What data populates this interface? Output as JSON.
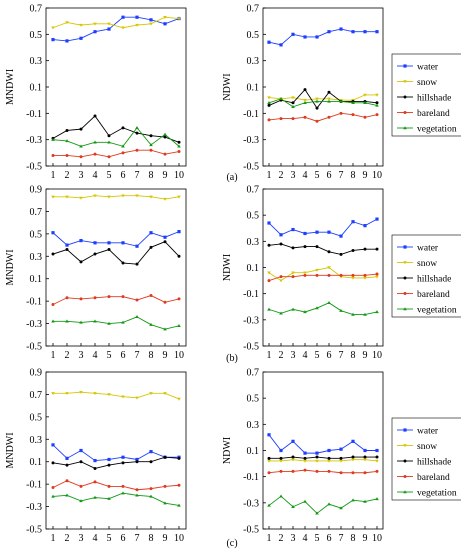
{
  "colors": {
    "water": "#1f3fff",
    "snow": "#d6c600",
    "hillshade": "#000000",
    "bareland": "#e03a1e",
    "vegetation": "#119911"
  },
  "chart_data": [
    {
      "panel": "(a)",
      "side": "left",
      "type": "line",
      "ylabel": "MNDWI",
      "ylim": [
        -0.5,
        0.7
      ],
      "yticks": [
        "0.7",
        "0.5",
        "0.3",
        "0.1",
        "-0.1",
        "-0.3",
        "-0.5"
      ],
      "x": [
        1,
        2,
        3,
        4,
        5,
        6,
        7,
        8,
        9,
        10
      ],
      "legend": "none",
      "series": [
        {
          "name": "water",
          "values": [
            0.46,
            0.45,
            0.47,
            0.52,
            0.54,
            0.63,
            0.63,
            0.61,
            0.58,
            0.62
          ]
        },
        {
          "name": "snow",
          "values": [
            0.55,
            0.59,
            0.57,
            0.58,
            0.58,
            0.55,
            0.57,
            0.58,
            0.63,
            0.62
          ]
        },
        {
          "name": "hillshade",
          "values": [
            -0.29,
            -0.23,
            -0.22,
            -0.12,
            -0.27,
            -0.21,
            -0.25,
            -0.27,
            -0.28,
            -0.32
          ]
        },
        {
          "name": "bareland",
          "values": [
            -0.42,
            -0.42,
            -0.43,
            -0.41,
            -0.43,
            -0.4,
            -0.38,
            -0.38,
            -0.41,
            -0.39
          ]
        },
        {
          "name": "vegetation",
          "values": [
            -0.3,
            -0.31,
            -0.35,
            -0.32,
            -0.32,
            -0.35,
            -0.21,
            -0.34,
            -0.26,
            -0.35
          ]
        }
      ]
    },
    {
      "panel": "(a)",
      "side": "right",
      "type": "line",
      "ylabel": "NDWI",
      "ylim": [
        -0.5,
        0.7
      ],
      "yticks": [
        "0.7",
        "0.5",
        "0.3",
        "0.1",
        "-0.1",
        "-0.3",
        "-0.5"
      ],
      "x": [
        1,
        2,
        3,
        4,
        5,
        6,
        7,
        8,
        9,
        10
      ],
      "legend": "right",
      "series": [
        {
          "name": "water",
          "values": [
            0.44,
            0.42,
            0.5,
            0.48,
            0.48,
            0.52,
            0.54,
            0.52,
            0.52,
            0.52
          ]
        },
        {
          "name": "snow",
          "values": [
            0.02,
            0.01,
            0.02,
            0.0,
            0.01,
            0.01,
            0.0,
            0.0,
            0.04,
            0.04
          ]
        },
        {
          "name": "hillshade",
          "values": [
            -0.04,
            0.0,
            -0.02,
            0.08,
            -0.06,
            0.06,
            -0.01,
            -0.01,
            -0.01,
            -0.02
          ]
        },
        {
          "name": "bareland",
          "values": [
            -0.15,
            -0.14,
            -0.14,
            -0.13,
            -0.16,
            -0.13,
            -0.1,
            -0.11,
            -0.13,
            -0.11
          ]
        },
        {
          "name": "vegetation",
          "values": [
            -0.02,
            0.01,
            -0.05,
            -0.02,
            -0.01,
            -0.01,
            -0.01,
            -0.02,
            -0.02,
            -0.04
          ]
        }
      ]
    },
    {
      "panel": "(b)",
      "side": "left",
      "type": "line",
      "ylabel": "MNDWI",
      "ylim": [
        -0.5,
        0.9
      ],
      "yticks": [
        "0.9",
        "0.7",
        "0.5",
        "0.3",
        "0.1",
        "-0.1",
        "-0.3",
        "-0.5"
      ],
      "x": [
        1,
        2,
        3,
        4,
        5,
        6,
        7,
        8,
        9,
        10
      ],
      "legend": "none",
      "series": [
        {
          "name": "water",
          "values": [
            0.51,
            0.4,
            0.44,
            0.42,
            0.42,
            0.42,
            0.39,
            0.51,
            0.47,
            0.52
          ]
        },
        {
          "name": "snow",
          "values": [
            0.83,
            0.83,
            0.82,
            0.84,
            0.83,
            0.84,
            0.84,
            0.83,
            0.81,
            0.83
          ]
        },
        {
          "name": "hillshade",
          "values": [
            0.32,
            0.36,
            0.25,
            0.32,
            0.36,
            0.24,
            0.23,
            0.38,
            0.43,
            0.3
          ]
        },
        {
          "name": "bareland",
          "values": [
            -0.13,
            -0.07,
            -0.08,
            -0.07,
            -0.06,
            -0.06,
            -0.09,
            -0.05,
            -0.11,
            -0.08
          ]
        },
        {
          "name": "vegetation",
          "values": [
            -0.28,
            -0.28,
            -0.29,
            -0.28,
            -0.3,
            -0.29,
            -0.24,
            -0.31,
            -0.35,
            -0.32
          ]
        }
      ]
    },
    {
      "panel": "(b)",
      "side": "right",
      "type": "line",
      "ylabel": "NDWI",
      "ylim": [
        -0.5,
        0.7
      ],
      "yticks": [
        "0.7",
        "0.5",
        "0.3",
        "0.1",
        "-0.1",
        "-0.3",
        "-0.5"
      ],
      "x": [
        1,
        2,
        3,
        4,
        5,
        6,
        7,
        8,
        9,
        10
      ],
      "legend": "right",
      "series": [
        {
          "name": "water",
          "values": [
            0.44,
            0.35,
            0.39,
            0.36,
            0.37,
            0.37,
            0.34,
            0.45,
            0.42,
            0.47
          ]
        },
        {
          "name": "snow",
          "values": [
            0.06,
            0.0,
            0.06,
            0.06,
            0.08,
            0.1,
            0.03,
            0.02,
            0.02,
            0.03
          ]
        },
        {
          "name": "hillshade",
          "values": [
            0.27,
            0.28,
            0.25,
            0.26,
            0.26,
            0.22,
            0.2,
            0.23,
            0.24,
            0.24
          ]
        },
        {
          "name": "bareland",
          "values": [
            0.0,
            0.03,
            0.03,
            0.04,
            0.04,
            0.04,
            0.04,
            0.04,
            0.04,
            0.05
          ]
        },
        {
          "name": "vegetation",
          "values": [
            -0.22,
            -0.25,
            -0.22,
            -0.24,
            -0.21,
            -0.17,
            -0.23,
            -0.26,
            -0.26,
            -0.24
          ]
        }
      ]
    },
    {
      "panel": "(c)",
      "side": "left",
      "type": "line",
      "ylabel": "MNDWI",
      "ylim": [
        -0.5,
        0.9
      ],
      "yticks": [
        "0.9",
        "0.7",
        "0.5",
        "0.3",
        "0.1",
        "-0.1",
        "-0.3",
        "-0.5"
      ],
      "x": [
        1,
        2,
        3,
        4,
        5,
        6,
        7,
        8,
        9,
        10
      ],
      "legend": "none",
      "series": [
        {
          "name": "water",
          "values": [
            0.25,
            0.13,
            0.2,
            0.11,
            0.12,
            0.14,
            0.12,
            0.19,
            0.14,
            0.14
          ]
        },
        {
          "name": "snow",
          "values": [
            0.71,
            0.71,
            0.72,
            0.71,
            0.7,
            0.68,
            0.67,
            0.71,
            0.71,
            0.66
          ]
        },
        {
          "name": "hillshade",
          "values": [
            0.09,
            0.07,
            0.1,
            0.04,
            0.07,
            0.09,
            0.1,
            0.1,
            0.14,
            0.13
          ]
        },
        {
          "name": "bareland",
          "values": [
            -0.13,
            -0.07,
            -0.12,
            -0.08,
            -0.12,
            -0.12,
            -0.15,
            -0.14,
            -0.12,
            -0.11
          ]
        },
        {
          "name": "vegetation",
          "values": [
            -0.21,
            -0.2,
            -0.25,
            -0.22,
            -0.23,
            -0.18,
            -0.2,
            -0.21,
            -0.27,
            -0.29
          ]
        }
      ]
    },
    {
      "panel": "(c)",
      "side": "right",
      "type": "line",
      "ylabel": "NDWI",
      "ylim": [
        -0.5,
        0.7
      ],
      "yticks": [
        "0.7",
        "0.5",
        "0.3",
        "0.1",
        "-0.1",
        "-0.3",
        "-0.5"
      ],
      "x": [
        1,
        2,
        3,
        4,
        5,
        6,
        7,
        8,
        9,
        10
      ],
      "legend": "right",
      "series": [
        {
          "name": "water",
          "values": [
            0.22,
            0.1,
            0.17,
            0.08,
            0.08,
            0.1,
            0.11,
            0.17,
            0.1,
            0.1
          ]
        },
        {
          "name": "snow",
          "values": [
            0.02,
            0.02,
            0.03,
            0.02,
            0.02,
            0.02,
            0.02,
            0.03,
            0.03,
            0.02
          ]
        },
        {
          "name": "hillshade",
          "values": [
            0.04,
            0.04,
            0.05,
            0.04,
            0.05,
            0.04,
            0.04,
            0.05,
            0.05,
            0.05
          ]
        },
        {
          "name": "bareland",
          "values": [
            -0.07,
            -0.06,
            -0.06,
            -0.05,
            -0.06,
            -0.06,
            -0.07,
            -0.07,
            -0.07,
            -0.06
          ]
        },
        {
          "name": "vegetation",
          "values": [
            -0.32,
            -0.25,
            -0.33,
            -0.29,
            -0.38,
            -0.31,
            -0.34,
            -0.28,
            -0.29,
            -0.27
          ]
        }
      ]
    }
  ],
  "legend_labels": [
    "water",
    "snow",
    "hillshade",
    "bareland",
    "vegetation"
  ],
  "panel_labels": [
    "(a)",
    "(b)",
    "(c)"
  ]
}
